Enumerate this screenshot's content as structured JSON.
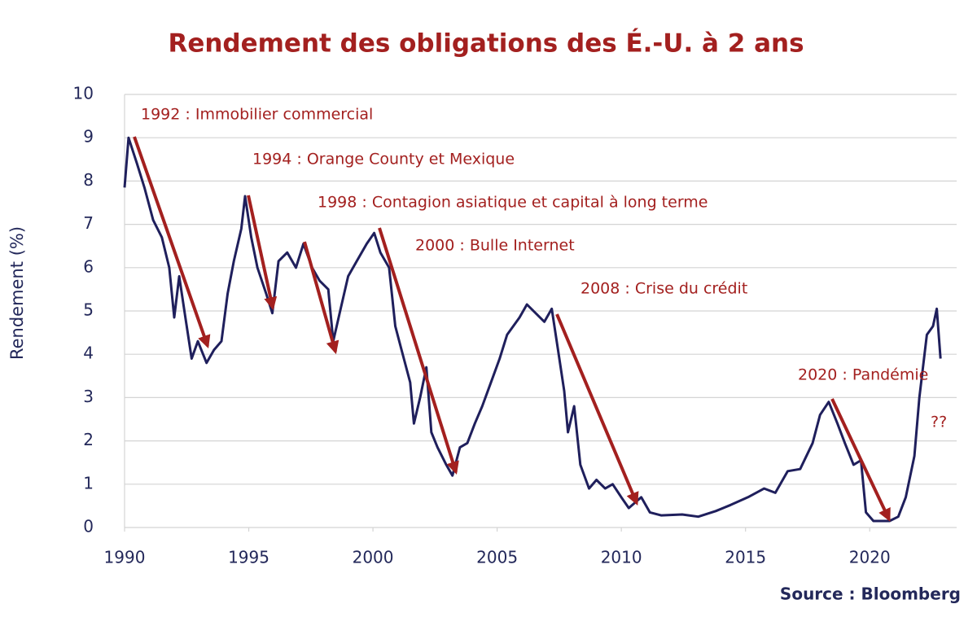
{
  "chart_data": {
    "type": "line",
    "title": "Rendement des obligations des É.-U. à 2 ans",
    "y_label": "Rendement (%)",
    "source": "Source : Bloomberg",
    "annotations": [
      "1992 : Immobilier commercial",
      "1994 : Orange County et Mexique",
      "1998 : Contagion asiatique et capital à long terme",
      "2000 : Bulle Internet",
      "2008 : Crise du crédit",
      "2020 : Pandémie",
      "??"
    ],
    "color": "#1f1f5c",
    "x": [
      1990.0,
      1990.16,
      1990.5,
      1990.8,
      1991.15,
      1991.5,
      1991.8,
      1992.0,
      1992.2,
      1992.45,
      1992.7,
      1992.95,
      1993.3,
      1993.6,
      1993.9,
      1994.15,
      1994.4,
      1994.7,
      1994.85,
      1995.1,
      1995.35,
      1995.7,
      1995.95,
      1996.2,
      1996.55,
      1996.9,
      1997.2,
      1997.55,
      1997.85,
      1998.2,
      1998.4,
      1998.7,
      1999.0,
      1999.35,
      1999.75,
      2000.05,
      2000.3,
      2000.65,
      2000.9,
      2001.15,
      2001.5,
      2001.65,
      2001.9,
      2002.15,
      2002.35,
      2002.6,
      2002.95,
      2003.2,
      2003.5,
      2003.8,
      2004.1,
      2004.4,
      2004.75,
      2005.1,
      2005.4,
      2005.9,
      2006.2,
      2006.55,
      2006.9,
      2007.2,
      2007.45,
      2007.7,
      2007.85,
      2008.1,
      2008.35,
      2008.7,
      2009.0,
      2009.35,
      2009.65,
      2010.0,
      2010.3,
      2010.8,
      2011.15,
      2011.6,
      2012.45,
      2013.1,
      2013.8,
      2014.4,
      2015.1,
      2015.75,
      2016.2,
      2016.7,
      2017.2,
      2017.7,
      2018.0,
      2018.35,
      2018.7,
      2019.0,
      2019.35,
      2019.65,
      2019.85,
      2020.15,
      2020.8,
      2021.15,
      2021.45,
      2021.8,
      2022.0,
      2022.3,
      2022.55,
      2022.7,
      2022.85
    ],
    "values": [
      7.85,
      9.0,
      8.4,
      7.85,
      7.1,
      6.7,
      6.0,
      4.85,
      5.8,
      4.85,
      3.9,
      4.3,
      3.8,
      4.1,
      4.3,
      5.4,
      6.15,
      6.9,
      7.65,
      6.7,
      6.0,
      5.4,
      4.95,
      6.15,
      6.35,
      6.0,
      6.55,
      6.0,
      5.7,
      5.5,
      4.3,
      5.05,
      5.8,
      6.15,
      6.55,
      6.8,
      6.35,
      6.0,
      4.65,
      4.1,
      3.35,
      2.4,
      3.0,
      3.7,
      2.2,
      1.85,
      1.45,
      1.2,
      1.85,
      1.95,
      2.4,
      2.8,
      3.35,
      3.9,
      4.45,
      4.85,
      5.15,
      4.95,
      4.75,
      5.05,
      4.1,
      3.15,
      2.2,
      2.8,
      1.45,
      0.9,
      1.1,
      0.9,
      1.0,
      0.7,
      0.45,
      0.7,
      0.35,
      0.28,
      0.3,
      0.25,
      0.38,
      0.52,
      0.7,
      0.9,
      0.8,
      1.3,
      1.35,
      1.95,
      2.6,
      2.9,
      2.4,
      1.95,
      1.45,
      1.55,
      0.35,
      0.15,
      0.15,
      0.25,
      0.7,
      1.65,
      3.0,
      4.45,
      4.65,
      5.05,
      3.9
    ],
    "xlim": [
      1990,
      2023.5
    ],
    "xticks": [
      1990,
      1995,
      2000,
      2005,
      2010,
      2015,
      2020
    ],
    "ylim": [
      0,
      10
    ],
    "yticks": [
      0,
      1,
      2,
      3,
      4,
      5,
      6,
      7,
      8,
      9,
      10
    ],
    "grid": true
  }
}
